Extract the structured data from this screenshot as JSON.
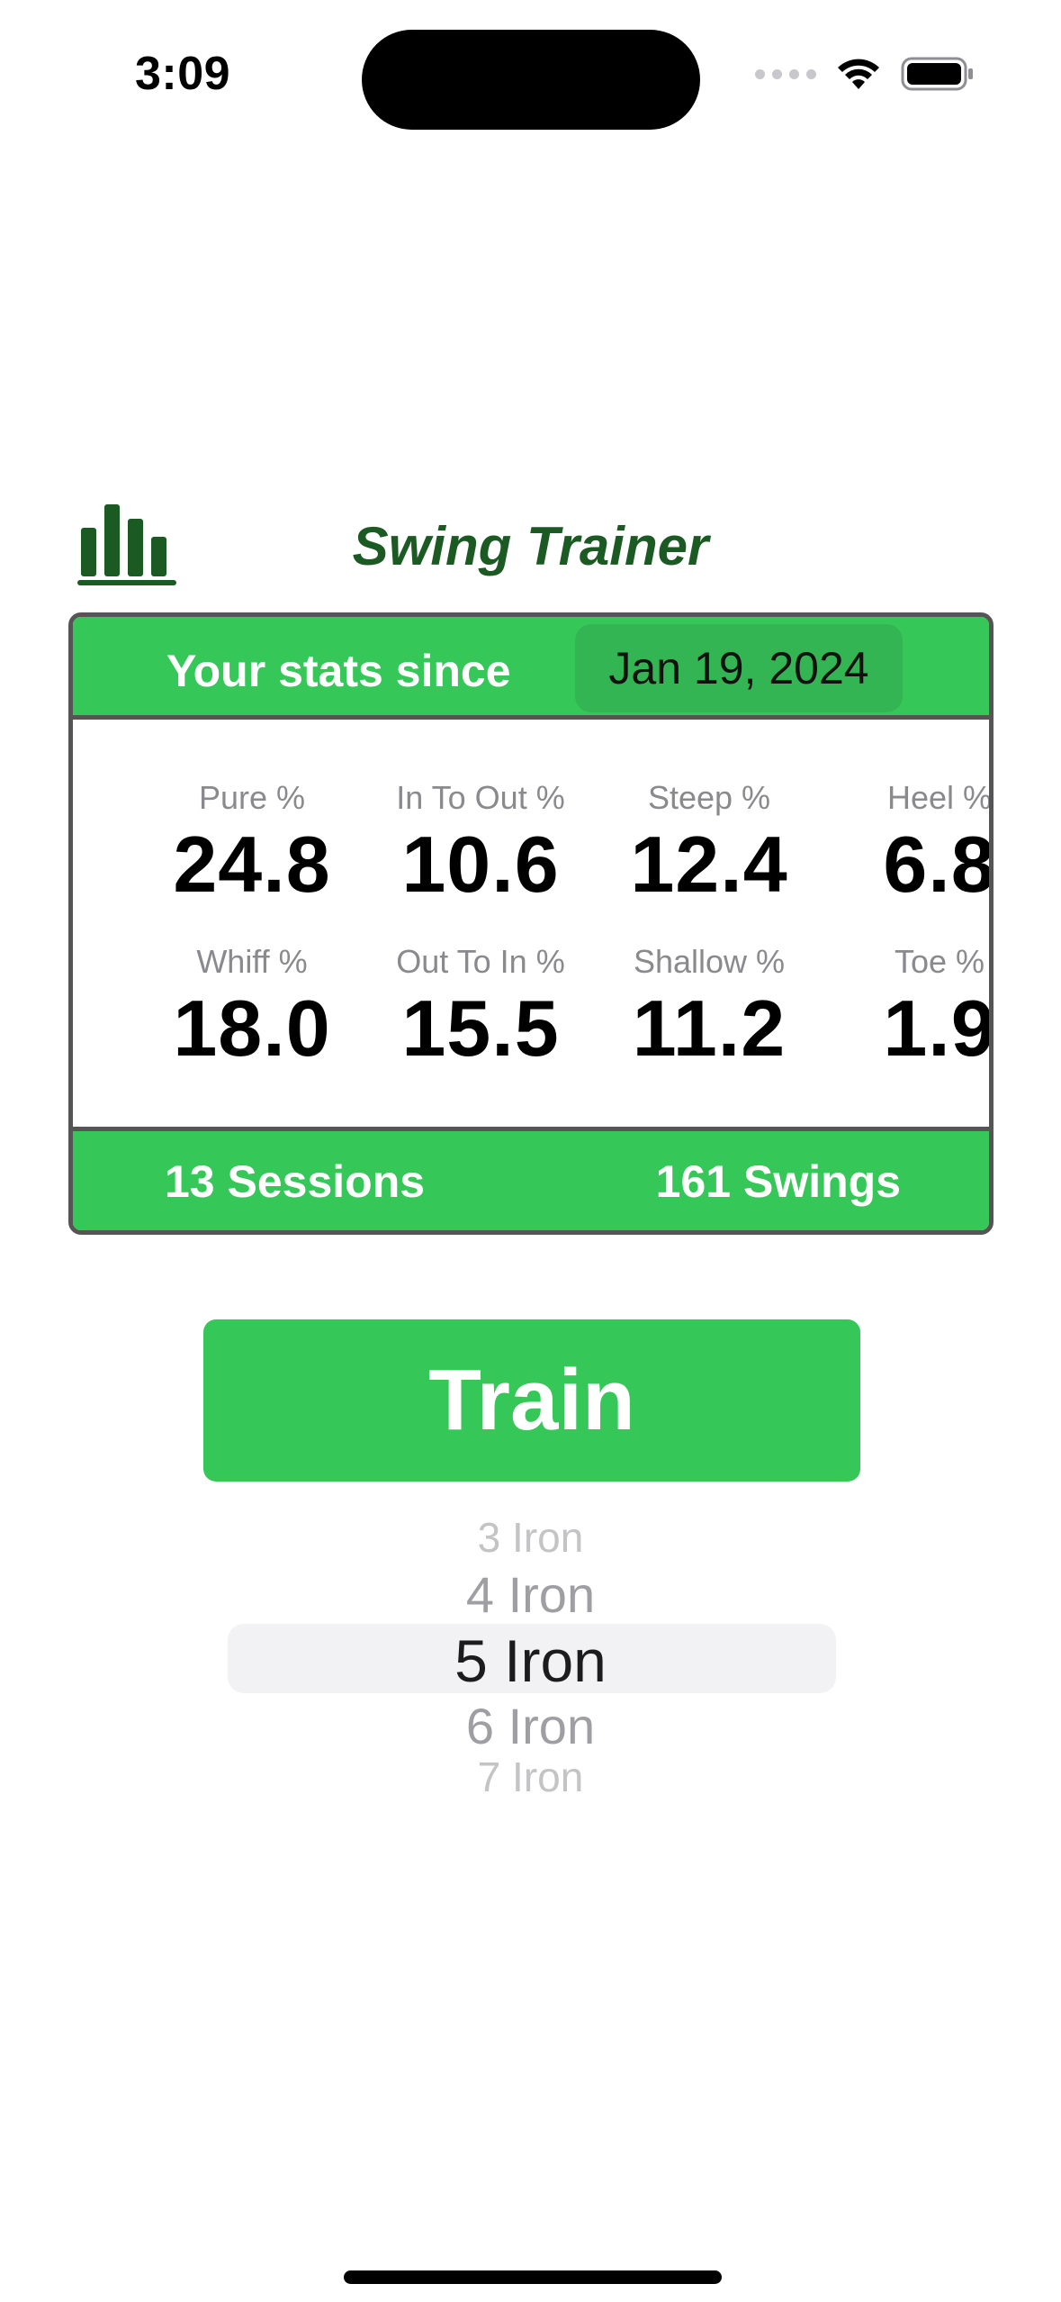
{
  "status_bar": {
    "time": "3:09"
  },
  "header": {
    "title": "Swing Trainer",
    "stats_icon": "bar-chart-icon"
  },
  "stats_card": {
    "since_label": "Your stats since",
    "since_date": "Jan 19, 2024",
    "stats": [
      {
        "label": "Pure %",
        "value": "24.8"
      },
      {
        "label": "In To Out %",
        "value": "10.6"
      },
      {
        "label": "Steep %",
        "value": "12.4"
      },
      {
        "label": "Heel %",
        "value": "6.8"
      },
      {
        "label": "Whiff %",
        "value": "18.0"
      },
      {
        "label": "Out To In %",
        "value": "15.5"
      },
      {
        "label": "Shallow %",
        "value": "11.2"
      },
      {
        "label": "Toe %",
        "value": "1.9"
      }
    ],
    "sessions": "13 Sessions",
    "swings": "161 Swings"
  },
  "train_button": {
    "label": "Train"
  },
  "club_picker": {
    "items": [
      "3 Iron",
      "4 Iron",
      "5 Iron",
      "6 Iron",
      "7 Iron"
    ],
    "selected": "5 Iron"
  },
  "colors": {
    "accent_green": "#36c759",
    "title_green": "#1c5a24",
    "border_gray": "#555555"
  }
}
